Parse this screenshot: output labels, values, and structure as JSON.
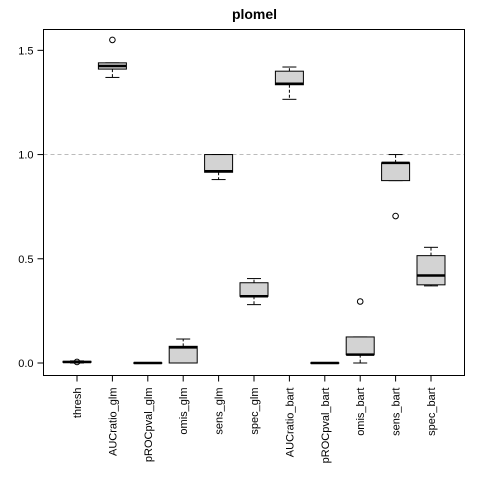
{
  "chart_data": {
    "type": "boxplot",
    "title": "plomel",
    "xlabel": "",
    "ylabel": "",
    "ylim": [
      -0.06,
      1.6
    ],
    "yticks": [
      0.0,
      0.5,
      1.0,
      1.5
    ],
    "ytick_labels": [
      "0.0",
      "0.5",
      "1.0",
      "1.5"
    ],
    "reference_line": 1.0,
    "box_fill": "#d3d3d3",
    "reference_line_color": "#bbbbbb",
    "categories": [
      "thresh",
      "AUCratio_glm",
      "pROCpval_glm",
      "omis_glm",
      "sens_glm",
      "spec_glm",
      "AUCratio_bart",
      "pROCpval_bart",
      "omis_bart",
      "sens_bart",
      "spec_bart"
    ],
    "boxes": [
      {
        "min": 0.0,
        "q1": 0.003,
        "median": 0.005,
        "q3": 0.008,
        "max": 0.01,
        "outliers": [
          0.005
        ]
      },
      {
        "min": 1.37,
        "q1": 1.41,
        "median": 1.425,
        "q3": 1.44,
        "max": 1.44,
        "outliers": [
          1.55
        ]
      },
      {
        "min": 0.0,
        "q1": 0.0,
        "median": 0.0,
        "q3": 0.001,
        "max": 0.001,
        "outliers": []
      },
      {
        "min": 0.0,
        "q1": 0.0,
        "median": 0.075,
        "q3": 0.08,
        "max": 0.115,
        "outliers": []
      },
      {
        "min": 0.88,
        "q1": 0.915,
        "median": 0.92,
        "q3": 1.0,
        "max": 1.0,
        "outliers": []
      },
      {
        "min": 0.28,
        "q1": 0.32,
        "median": 0.32,
        "q3": 0.385,
        "max": 0.405,
        "outliers": []
      },
      {
        "min": 1.265,
        "q1": 1.335,
        "median": 1.34,
        "q3": 1.4,
        "max": 1.42,
        "outliers": []
      },
      {
        "min": 0.0,
        "q1": 0.0,
        "median": 0.0,
        "q3": 0.001,
        "max": 0.001,
        "outliers": []
      },
      {
        "min": 0.0,
        "q1": 0.04,
        "median": 0.04,
        "q3": 0.125,
        "max": 0.125,
        "outliers": [
          0.295
        ]
      },
      {
        "min": 0.875,
        "q1": 0.875,
        "median": 0.96,
        "q3": 0.96,
        "max": 1.0,
        "outliers": [
          0.705
        ]
      },
      {
        "min": 0.37,
        "q1": 0.375,
        "median": 0.42,
        "q3": 0.515,
        "max": 0.555,
        "outliers": []
      }
    ]
  }
}
